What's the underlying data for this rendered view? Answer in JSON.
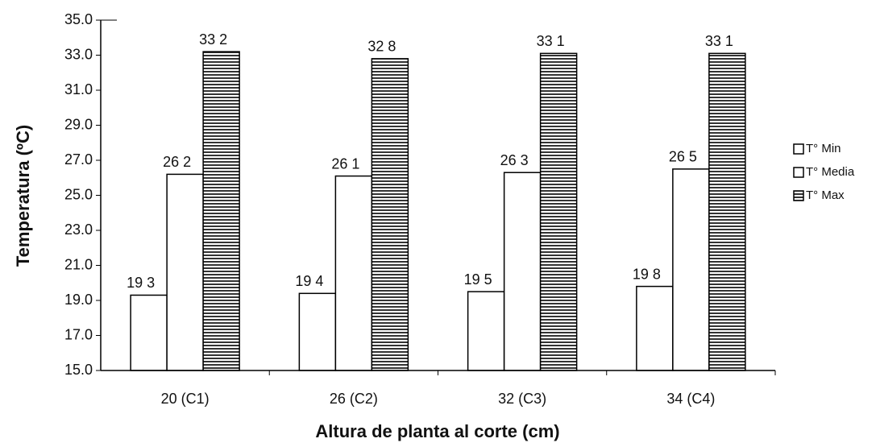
{
  "chart_data": {
    "type": "bar",
    "categories": [
      "20 (C1)",
      "26 (C2)",
      "32 (C3)",
      "34 (C4)"
    ],
    "series": [
      {
        "name": "T° Min",
        "color": "#ffffff",
        "values": [
          19.3,
          19.4,
          19.5,
          19.8
        ],
        "value_labels": [
          "19 3",
          "19 4",
          "19 5",
          "19 8"
        ]
      },
      {
        "name": "T° Media",
        "color": "#ffffff",
        "values": [
          26.2,
          26.1,
          26.3,
          26.5
        ],
        "value_labels": [
          "26 2",
          "26 1",
          "26 3",
          "26 5"
        ]
      },
      {
        "name": "T° Max",
        "color": "#000000",
        "pattern": "horizontal-lines",
        "values": [
          33.2,
          32.8,
          33.1,
          33.1
        ],
        "value_labels": [
          "33 2",
          "32 8",
          "33 1",
          "33 1"
        ]
      }
    ],
    "ylim": [
      15,
      35
    ],
    "yticks": [
      {
        "value": 15,
        "label": "15.0"
      },
      {
        "value": 17,
        "label": "17.0"
      },
      {
        "value": 19,
        "label": "19.0"
      },
      {
        "value": 21,
        "label": "21.0"
      },
      {
        "value": 23,
        "label": "23.0"
      },
      {
        "value": 25,
        "label": "25.0"
      },
      {
        "value": 27,
        "label": "27.0"
      },
      {
        "value": 29,
        "label": "29.0"
      },
      {
        "value": 31,
        "label": "31.0"
      },
      {
        "value": 33,
        "label": "33.0"
      },
      {
        "value": 35,
        "label": "35.0"
      }
    ],
    "y_label": "Temperatura (ºC)",
    "x_label": "Altura de planta al corte (cm)",
    "legend": "right",
    "grid": false
  }
}
